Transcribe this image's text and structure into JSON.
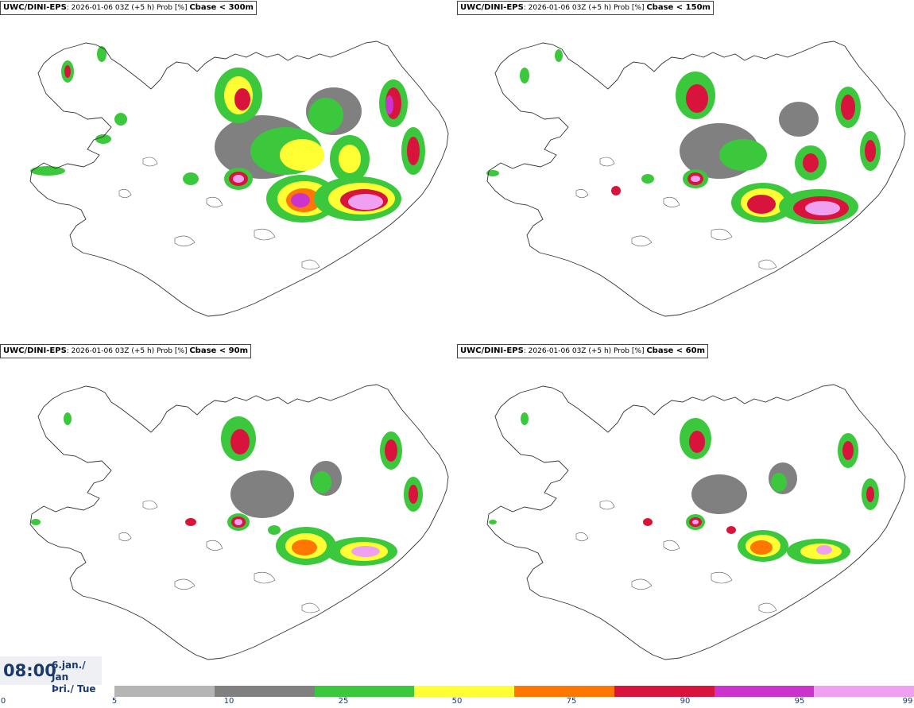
{
  "panels": [
    {
      "source": "UWC/DINI-EPS",
      "run": "2026-01-06 03Z (+5 h) Prob [%]",
      "cbase": "Cbase < 300m"
    },
    {
      "source": "UWC/DINI-EPS",
      "run": "2026-01-06 03Z (+5 h) Prob [%]",
      "cbase": "Cbase < 150m"
    },
    {
      "source": "UWC/DINI-EPS",
      "run": "2026-01-06 03Z (+5 h) Prob [%]",
      "cbase": "Cbase < 90m"
    },
    {
      "source": "UWC/DINI-EPS",
      "run": "2026-01-06 03Z (+5 h) Prob [%]",
      "cbase": "Cbase < 60m"
    }
  ],
  "valid_time": {
    "time": "08:00",
    "date_line1": "6.jan./ Jan",
    "date_line2": "Þri./ Tue"
  },
  "legend": {
    "ticks": [
      "0",
      "5",
      "10",
      "25",
      "50",
      "75",
      "90",
      "95",
      "99"
    ],
    "colors": [
      "#b5b5b5",
      "#808080",
      "#3cc83c",
      "#ffff33",
      "#ff7700",
      "#d9143c",
      "#cc33cc",
      "#f0a0f0"
    ]
  }
}
